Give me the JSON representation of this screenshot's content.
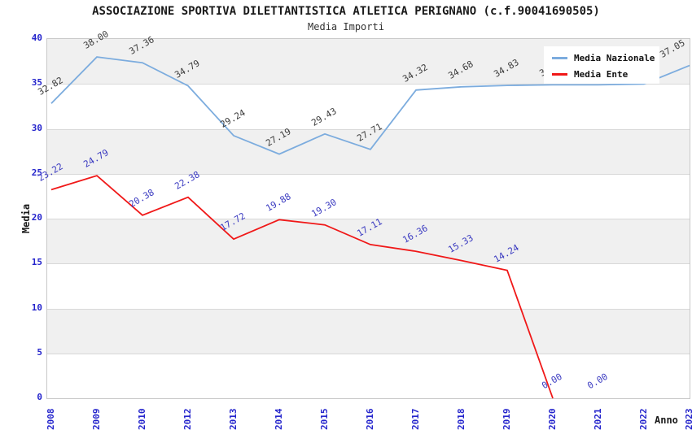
{
  "title": "ASSOCIAZIONE SPORTIVA DILETTANTISTICA ATLETICA PERIGNANO (c.f.90041690505)",
  "subtitle": "Media Importi",
  "y_axis": {
    "title": "Media",
    "min": 0,
    "max": 40,
    "ticks": [
      0,
      5,
      10,
      15,
      20,
      25,
      30,
      35,
      40
    ]
  },
  "x_axis": {
    "title": "Anno",
    "labels": [
      "2008",
      "2009",
      "2010",
      "2012",
      "2013",
      "2014",
      "2015",
      "2016",
      "2017",
      "2018",
      "2019",
      "2020",
      "2021",
      "2022",
      "2023"
    ]
  },
  "legend": {
    "position": "top-right",
    "items": [
      {
        "label": "Media Nazionale",
        "color": "#7cacde"
      },
      {
        "label": "Media Ente",
        "color": "#f01818"
      }
    ]
  },
  "colors": {
    "band_gray": "#f0f0f0",
    "grid_line": "#d8d8d8",
    "plot_border": "#c8c8c8",
    "axis_tick_label": "#2424cc",
    "nazionale_line": "#7cacde",
    "nazionale_point_label": "#3c3c3c",
    "ente_line": "#f01818",
    "ente_point_label": "#3939c0"
  },
  "chart_data": {
    "type": "line",
    "title": "ASSOCIAZIONE SPORTIVA DILETTANTISTICA ATLETICA PERIGNANO (c.f.90041690505)",
    "subtitle": "Media Importi",
    "xlabel": "Anno",
    "ylabel": "Media",
    "ylim": [
      0,
      40
    ],
    "grid": "horizontal lines every 5 units with alternating gray/white bands",
    "legend_position": "top-right",
    "categories": [
      "2008",
      "2009",
      "2010",
      "2012",
      "2013",
      "2014",
      "2015",
      "2016",
      "2017",
      "2018",
      "2019",
      "2020",
      "2021",
      "2022",
      "2023"
    ],
    "series": [
      {
        "name": "Media Nazionale",
        "color": "#7cacde",
        "values": [
          32.82,
          38.0,
          37.36,
          34.79,
          29.24,
          27.19,
          29.43,
          27.71,
          34.32,
          34.68,
          34.83,
          34.9,
          34.9,
          35.0,
          37.05
        ],
        "occluded_label_indices": [
          11,
          12,
          13
        ]
      },
      {
        "name": "Media Ente",
        "color": "#f01818",
        "values": [
          23.22,
          24.79,
          20.38,
          22.38,
          17.72,
          19.88,
          19.3,
          17.11,
          16.36,
          15.33,
          14.24,
          0.0,
          0.0,
          null,
          null
        ],
        "polyline_through": 12
      }
    ]
  }
}
